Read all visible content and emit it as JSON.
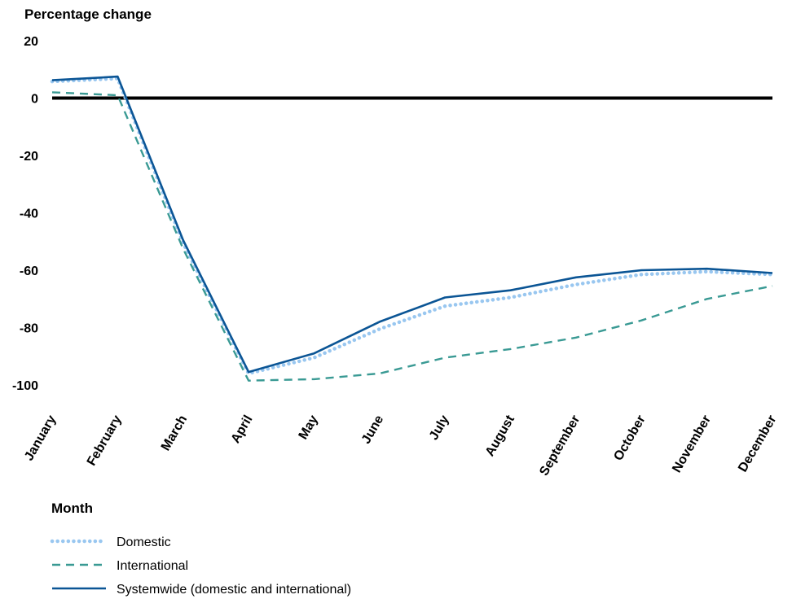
{
  "chart_data": {
    "type": "line",
    "ylabel": "Percentage change",
    "xlabel": "Month",
    "ylim": [
      -100,
      20
    ],
    "y_ticks": [
      "20",
      "0",
      "-20",
      "-40",
      "-60",
      "-80",
      "-100"
    ],
    "y_tick_values": [
      20,
      0,
      -20,
      -40,
      -60,
      -80,
      -100
    ],
    "categories": [
      "January",
      "February",
      "March",
      "April",
      "May",
      "June",
      "July",
      "August",
      "September",
      "October",
      "November",
      "December"
    ],
    "reference_line": 0,
    "legend_position": "bottom-left",
    "grid": false,
    "series": [
      {
        "name": "Domestic",
        "style": "dotted",
        "color": "#99c7f0",
        "values": [
          5.8,
          6.8,
          -50.5,
          -96,
          -90.5,
          -80.5,
          -72.5,
          -69.5,
          -65,
          -61.5,
          -60.5,
          -61.5
        ]
      },
      {
        "name": "International",
        "style": "dashed",
        "color": "#3a9a94",
        "values": [
          2,
          1,
          -52.5,
          -98.5,
          -98,
          -96,
          -90.5,
          -87.5,
          -83.5,
          -77.5,
          -70,
          -65.5
        ]
      },
      {
        "name": "Systemwide (domestic and international)",
        "style": "solid",
        "color": "#0b5595",
        "values": [
          6.2,
          7.5,
          -49.5,
          -95.5,
          -89,
          -78,
          -69.5,
          -67,
          -62.5,
          -60,
          -59.5,
          -61
        ]
      }
    ]
  }
}
